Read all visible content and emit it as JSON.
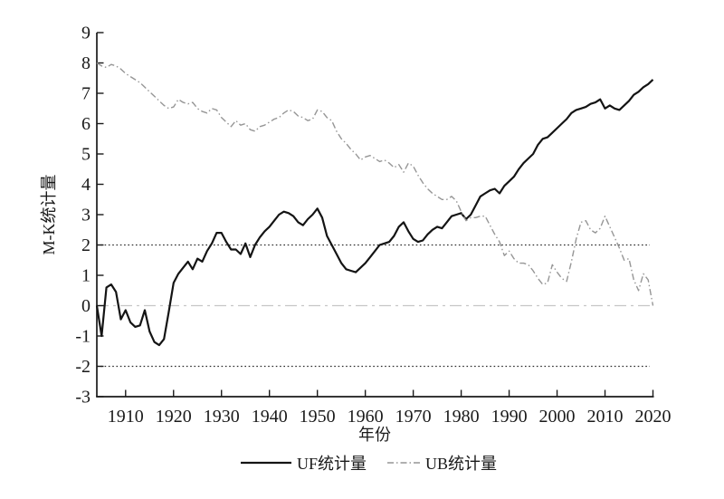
{
  "figure": {
    "background_color": "#ffffff"
  },
  "chart_data": {
    "type": "line",
    "title": "",
    "xlabel": "年份",
    "ylabel": "M-K统计量",
    "xlim": [
      1904,
      2020
    ],
    "ylim": [
      -3,
      9
    ],
    "xticks": [
      1910,
      1920,
      1930,
      1940,
      1950,
      1960,
      1970,
      1980,
      1990,
      2000,
      2010,
      2020
    ],
    "yticks": [
      -3,
      -2,
      -1,
      0,
      1,
      2,
      3,
      4,
      5,
      6,
      7,
      8,
      9
    ],
    "grid": false,
    "legend_position": "bottom-center",
    "years": [
      1904,
      1905,
      1906,
      1907,
      1908,
      1909,
      1910,
      1911,
      1912,
      1913,
      1914,
      1915,
      1916,
      1917,
      1918,
      1919,
      1920,
      1921,
      1922,
      1923,
      1924,
      1925,
      1926,
      1927,
      1928,
      1929,
      1930,
      1931,
      1932,
      1933,
      1934,
      1935,
      1936,
      1937,
      1938,
      1939,
      1940,
      1941,
      1942,
      1943,
      1944,
      1945,
      1946,
      1947,
      1948,
      1949,
      1950,
      1951,
      1952,
      1953,
      1954,
      1955,
      1956,
      1957,
      1958,
      1959,
      1960,
      1961,
      1962,
      1963,
      1964,
      1965,
      1966,
      1967,
      1968,
      1969,
      1970,
      1971,
      1972,
      1973,
      1974,
      1975,
      1976,
      1977,
      1978,
      1979,
      1980,
      1981,
      1982,
      1983,
      1984,
      1985,
      1986,
      1987,
      1988,
      1989,
      1990,
      1991,
      1992,
      1993,
      1994,
      1995,
      1996,
      1997,
      1998,
      1999,
      2000,
      2001,
      2002,
      2003,
      2004,
      2005,
      2006,
      2007,
      2008,
      2009,
      2010,
      2011,
      2012,
      2013,
      2014,
      2015,
      2016,
      2017,
      2018,
      2019,
      2020
    ],
    "series": [
      {
        "name": "UF统计量",
        "color": "#141414",
        "line_style": "solid",
        "line_width": 2.2,
        "values": [
          0.0,
          -1.0,
          0.6,
          0.7,
          0.45,
          -0.45,
          -0.15,
          -0.55,
          -0.7,
          -0.65,
          -0.15,
          -0.85,
          -1.2,
          -1.3,
          -1.1,
          -0.2,
          0.75,
          1.05,
          1.25,
          1.45,
          1.2,
          1.55,
          1.45,
          1.8,
          2.05,
          2.4,
          2.4,
          2.1,
          1.85,
          1.85,
          1.7,
          2.05,
          1.6,
          2.0,
          2.25,
          2.45,
          2.6,
          2.8,
          3.0,
          3.1,
          3.05,
          2.95,
          2.75,
          2.65,
          2.85,
          3.0,
          3.2,
          2.9,
          2.3,
          2.0,
          1.7,
          1.4,
          1.2,
          1.15,
          1.1,
          1.25,
          1.4,
          1.6,
          1.8,
          2.0,
          2.05,
          2.1,
          2.3,
          2.6,
          2.75,
          2.45,
          2.2,
          2.1,
          2.15,
          2.35,
          2.5,
          2.6,
          2.55,
          2.75,
          2.95,
          3.0,
          3.05,
          2.85,
          3.0,
          3.3,
          3.6,
          3.7,
          3.8,
          3.85,
          3.7,
          3.95,
          4.1,
          4.25,
          4.5,
          4.7,
          4.85,
          5.0,
          5.3,
          5.5,
          5.55,
          5.7,
          5.85,
          6.0,
          6.15,
          6.35,
          6.45,
          6.5,
          6.55,
          6.65,
          6.7,
          6.8,
          6.5,
          6.6,
          6.5,
          6.45,
          6.6,
          6.75,
          6.95,
          7.05,
          7.2,
          7.3,
          7.45
        ]
      },
      {
        "name": "UB统计量",
        "color": "#969696",
        "line_style": "dash-dot",
        "line_width": 1.4,
        "values": [
          8.0,
          7.9,
          7.85,
          7.95,
          7.9,
          7.8,
          7.65,
          7.55,
          7.45,
          7.35,
          7.2,
          7.05,
          6.9,
          6.75,
          6.6,
          6.5,
          6.55,
          6.8,
          6.7,
          6.65,
          6.7,
          6.5,
          6.4,
          6.35,
          6.5,
          6.45,
          6.2,
          6.05,
          5.9,
          6.1,
          5.95,
          6.0,
          5.8,
          5.75,
          5.9,
          5.95,
          6.05,
          6.15,
          6.2,
          6.35,
          6.45,
          6.4,
          6.25,
          6.2,
          6.1,
          6.15,
          6.45,
          6.4,
          6.2,
          6.1,
          5.75,
          5.5,
          5.35,
          5.15,
          5.0,
          4.8,
          4.9,
          4.95,
          4.85,
          4.75,
          4.8,
          4.7,
          4.55,
          4.65,
          4.4,
          4.7,
          4.6,
          4.3,
          4.05,
          3.85,
          3.7,
          3.6,
          3.5,
          3.5,
          3.6,
          3.45,
          3.1,
          2.8,
          2.9,
          2.9,
          2.95,
          2.95,
          2.65,
          2.35,
          2.1,
          1.65,
          1.8,
          1.55,
          1.4,
          1.4,
          1.35,
          1.15,
          0.9,
          0.7,
          0.75,
          1.35,
          1.1,
          0.9,
          0.8,
          1.45,
          2.2,
          2.75,
          2.8,
          2.5,
          2.4,
          2.55,
          2.95,
          2.6,
          2.25,
          1.9,
          1.5,
          1.55,
          0.85,
          0.5,
          1.05,
          0.85,
          0.0
        ]
      }
    ],
    "reference_lines": [
      {
        "y": 2,
        "style": "dotted",
        "color": "#2b2b2b",
        "width": 1.3
      },
      {
        "y": -2,
        "style": "dotted",
        "color": "#2b2b2b",
        "width": 1.3
      },
      {
        "y": 0,
        "style": "dash-dot-light",
        "color": "#c6c6c6",
        "width": 1.2
      }
    ],
    "axis_color": "#1a1a1a"
  }
}
